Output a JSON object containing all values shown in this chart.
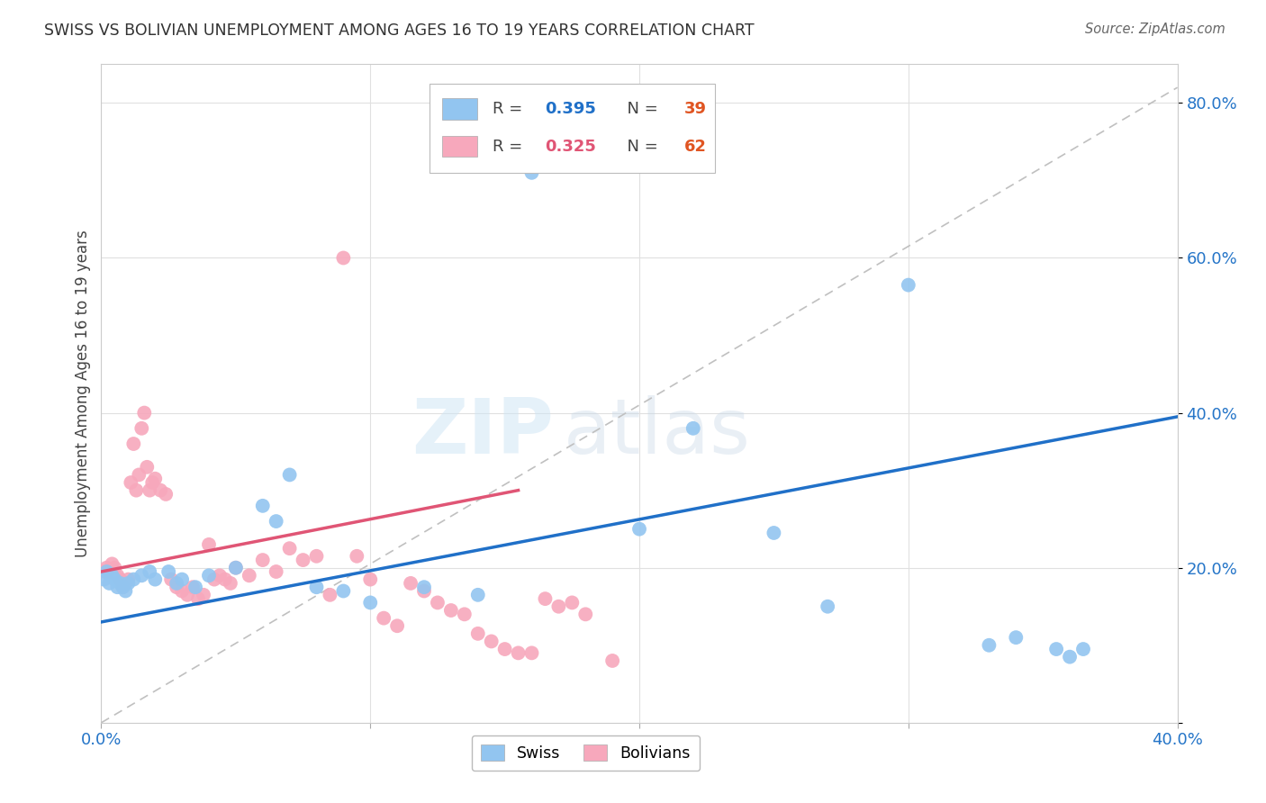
{
  "title": "SWISS VS BOLIVIAN UNEMPLOYMENT AMONG AGES 16 TO 19 YEARS CORRELATION CHART",
  "source": "Source: ZipAtlas.com",
  "ylabel": "Unemployment Among Ages 16 to 19 years",
  "swiss_R": "0.395",
  "swiss_N": "39",
  "bolivian_R": "0.325",
  "bolivian_N": "62",
  "swiss_color": "#92c5f0",
  "bolivian_color": "#f7a8bc",
  "swiss_line_color": "#2070c8",
  "bolivian_line_color": "#e05575",
  "trend_line_color": "#c0c0c0",
  "background_color": "#ffffff",
  "xlim": [
    0.0,
    0.4
  ],
  "ylim": [
    0.0,
    0.85
  ],
  "swiss_x": [
    0.001,
    0.002,
    0.003,
    0.004,
    0.005,
    0.006,
    0.007,
    0.008,
    0.009,
    0.01,
    0.012,
    0.015,
    0.018,
    0.02,
    0.025,
    0.028,
    0.03,
    0.035,
    0.04,
    0.05,
    0.06,
    0.065,
    0.07,
    0.08,
    0.09,
    0.1,
    0.12,
    0.14,
    0.16,
    0.2,
    0.22,
    0.25,
    0.27,
    0.3,
    0.33,
    0.34,
    0.355,
    0.36,
    0.365
  ],
  "swiss_y": [
    0.185,
    0.195,
    0.18,
    0.19,
    0.185,
    0.175,
    0.18,
    0.175,
    0.17,
    0.18,
    0.185,
    0.19,
    0.195,
    0.185,
    0.195,
    0.18,
    0.185,
    0.175,
    0.19,
    0.2,
    0.28,
    0.26,
    0.32,
    0.175,
    0.17,
    0.155,
    0.175,
    0.165,
    0.71,
    0.25,
    0.38,
    0.245,
    0.15,
    0.565,
    0.1,
    0.11,
    0.095,
    0.085,
    0.095
  ],
  "bolivian_x": [
    0.001,
    0.002,
    0.003,
    0.004,
    0.005,
    0.006,
    0.007,
    0.008,
    0.009,
    0.01,
    0.011,
    0.012,
    0.013,
    0.014,
    0.015,
    0.016,
    0.017,
    0.018,
    0.019,
    0.02,
    0.022,
    0.024,
    0.026,
    0.028,
    0.03,
    0.032,
    0.034,
    0.036,
    0.038,
    0.04,
    0.042,
    0.044,
    0.046,
    0.048,
    0.05,
    0.055,
    0.06,
    0.065,
    0.07,
    0.075,
    0.08,
    0.085,
    0.09,
    0.095,
    0.1,
    0.105,
    0.11,
    0.115,
    0.12,
    0.125,
    0.13,
    0.135,
    0.14,
    0.145,
    0.15,
    0.155,
    0.16,
    0.165,
    0.17,
    0.175,
    0.18,
    0.19
  ],
  "bolivian_y": [
    0.195,
    0.2,
    0.195,
    0.205,
    0.2,
    0.19,
    0.185,
    0.175,
    0.18,
    0.185,
    0.31,
    0.36,
    0.3,
    0.32,
    0.38,
    0.4,
    0.33,
    0.3,
    0.31,
    0.315,
    0.3,
    0.295,
    0.185,
    0.175,
    0.17,
    0.165,
    0.175,
    0.16,
    0.165,
    0.23,
    0.185,
    0.19,
    0.185,
    0.18,
    0.2,
    0.19,
    0.21,
    0.195,
    0.225,
    0.21,
    0.215,
    0.165,
    0.6,
    0.215,
    0.185,
    0.135,
    0.125,
    0.18,
    0.17,
    0.155,
    0.145,
    0.14,
    0.115,
    0.105,
    0.095,
    0.09,
    0.09,
    0.16,
    0.15,
    0.155,
    0.14,
    0.08
  ],
  "swiss_trend_x": [
    0.0,
    0.4
  ],
  "swiss_trend_y_start": 0.13,
  "swiss_trend_y_end": 0.395,
  "bolivian_trend_x": [
    0.0,
    0.155
  ],
  "bolivian_trend_y_start": 0.195,
  "bolivian_trend_y_end": 0.3
}
